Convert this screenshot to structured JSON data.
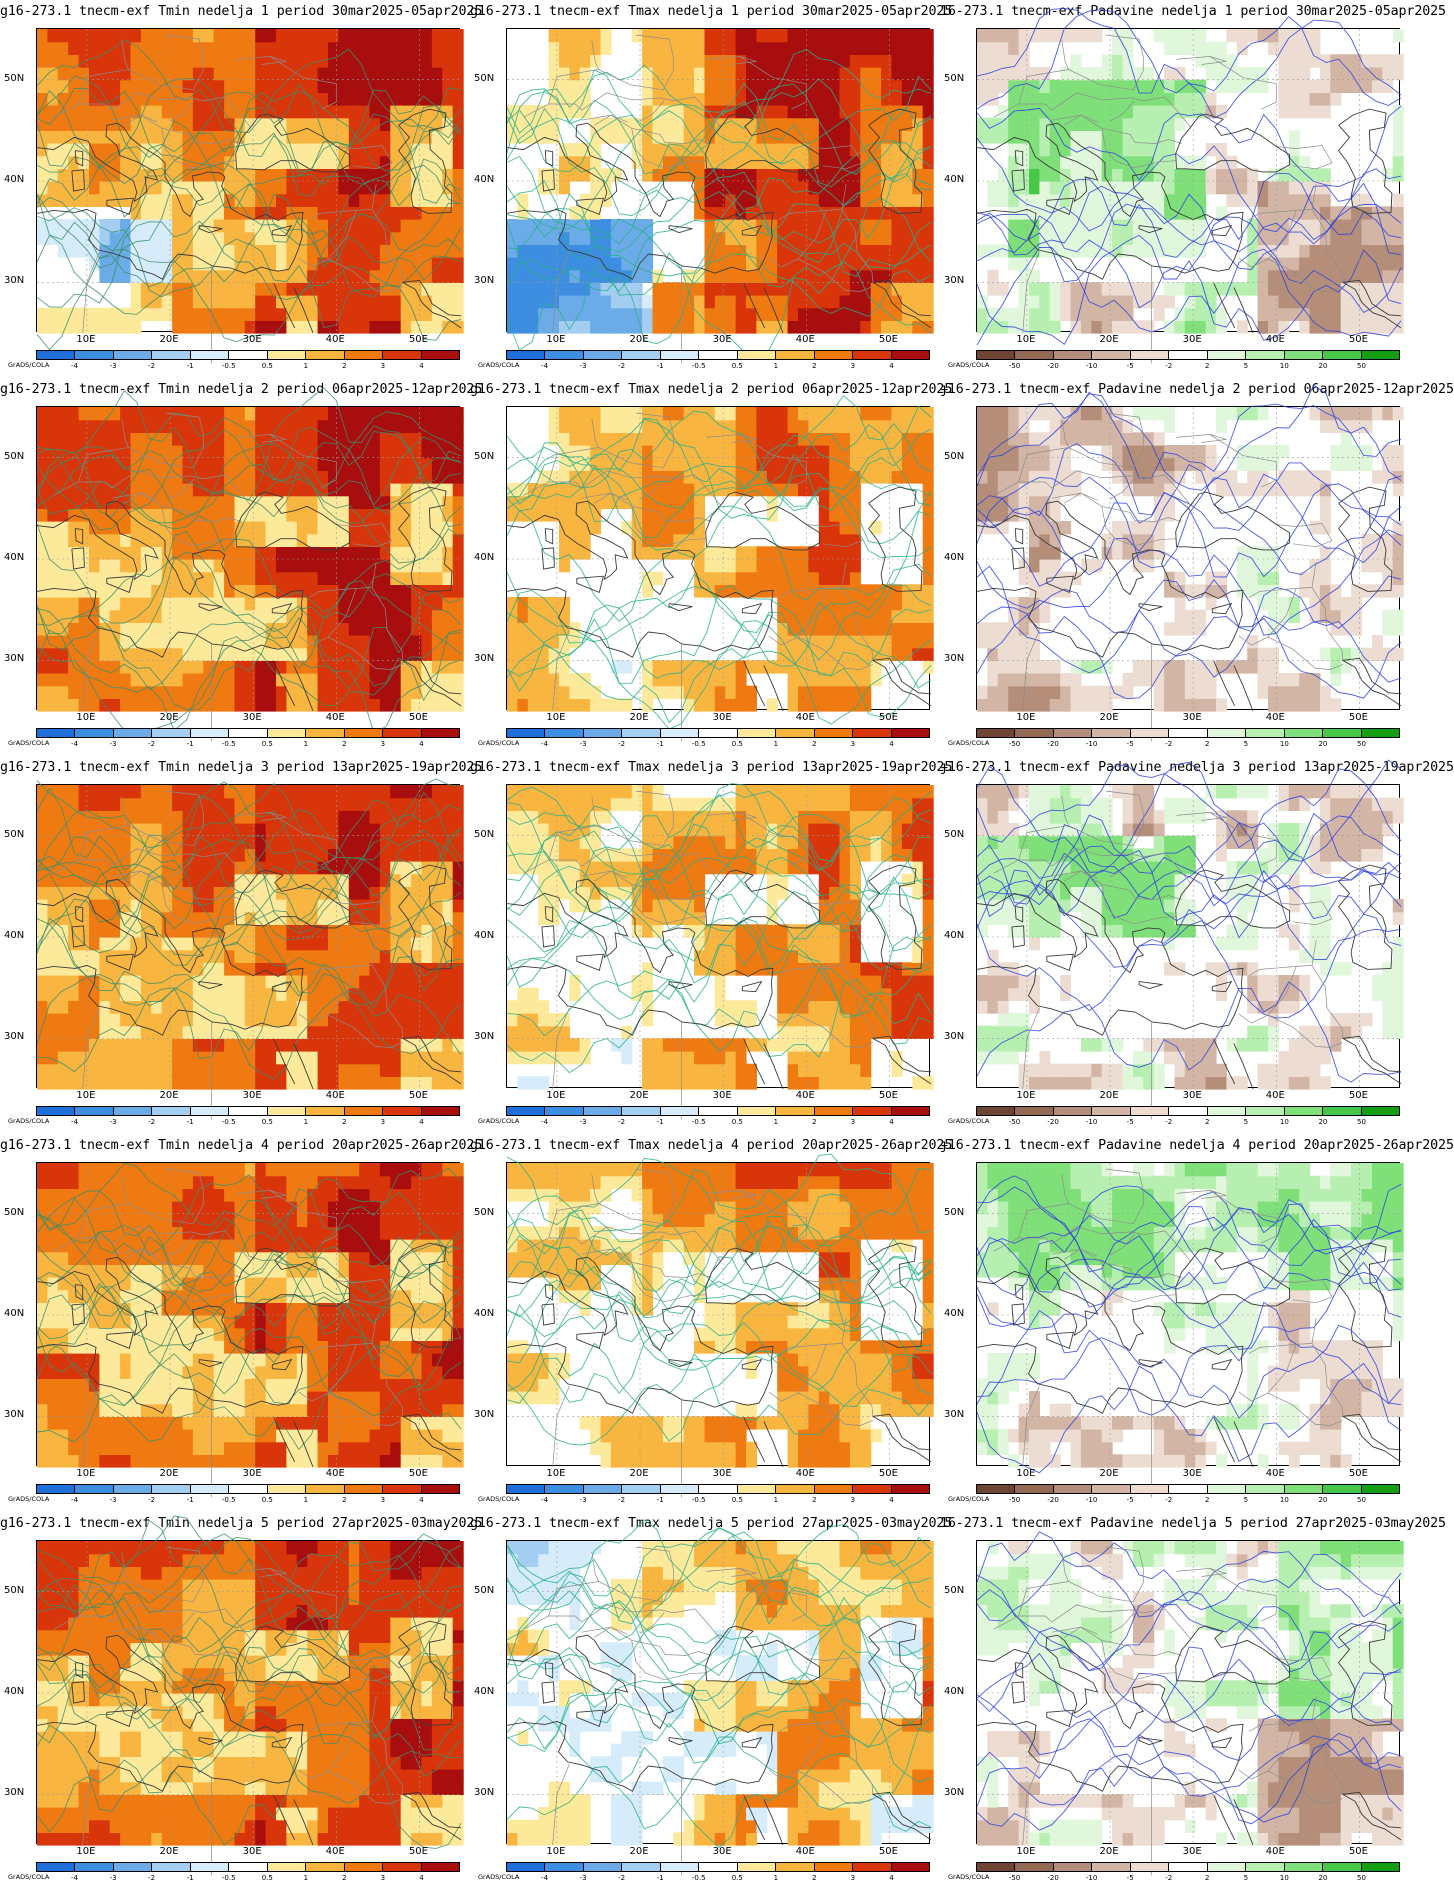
{
  "panels": [
    {
      "title": "g16-273.1 tnecm-exf Tmin nedelja 1 period 30mar2025-05apr2025",
      "kind": "tmin",
      "week": 1
    },
    {
      "title": "g16-273.1 tnecm-exf Tmax nedelja 1 period 30mar2025-05apr2025",
      "kind": "tmax",
      "week": 1
    },
    {
      "title": "16-273.1 tnecm-exf Padavine nedelja 1 period 30mar2025-05apr2025",
      "kind": "prec",
      "week": 1
    },
    {
      "title": "g16-273.1 tnecm-exf Tmin nedelja 2 period 06apr2025-12apr2025",
      "kind": "tmin",
      "week": 2
    },
    {
      "title": "g16-273.1 tnecm-exf Tmax nedelja 2 period 06apr2025-12apr2025",
      "kind": "tmax",
      "week": 2
    },
    {
      "title": "ɟ16-273.1 tnecm-exf Padavine nedelja 2 period 06apr2025-12apr2025",
      "kind": "prec",
      "week": 2
    },
    {
      "title": "g16-273.1 tnecm-exf Tmin nedelja 3 period 13apr2025-19apr2025",
      "kind": "tmin",
      "week": 3
    },
    {
      "title": "g16-273.1 tnecm-exf Tmax nedelja 3 period 13apr2025-19apr2025",
      "kind": "tmax",
      "week": 3
    },
    {
      "title": "ɟ16-273.1 tnecm-exf Padavine nedelja 3 period 13apr2025-19apr2025",
      "kind": "prec",
      "week": 3
    },
    {
      "title": "g16-273.1 tnecm-exf Tmin nedelja 4 period 20apr2025-26apr2025",
      "kind": "tmin",
      "week": 4
    },
    {
      "title": "g16-273.1 tnecm-exf Tmax nedelja 4 period 20apr2025-26apr2025",
      "kind": "tmax",
      "week": 4
    },
    {
      "title": "ɟ16-273.1 tnecm-exf Padavine nedelja 4 period 20apr2025-26apr2025",
      "kind": "prec",
      "week": 4
    },
    {
      "title": "g16-273.1 tnecm-exf Tmin nedelja 5 period 27apr2025-03may2025",
      "kind": "tmin",
      "week": 5
    },
    {
      "title": "g16-273.1 tnecm-exf Tmax nedelja 5 period 27apr2025-03may2025",
      "kind": "tmax",
      "week": 5
    },
    {
      "title": "16-273.1 tnecm-exf Padavine nedelja 5 period 27apr2025-03may2025",
      "kind": "prec",
      "week": 5
    }
  ],
  "lat_labels": [
    "50N",
    "40N",
    "30N"
  ],
  "lon_labels": [
    "10E",
    "20E",
    "30E",
    "40E",
    "50E"
  ],
  "credit": "GrADS/COLA",
  "temp_scale": {
    "labels": [
      "-4",
      "-3",
      "-2",
      "-1",
      "-0.5",
      "0.5",
      "1",
      "2",
      "3",
      "4"
    ],
    "colors": [
      "#1e6fd9",
      "#3d8ee0",
      "#6bace8",
      "#a3cef2",
      "#d6ecfa",
      "#ffffff",
      "#fde99a",
      "#f8b540",
      "#ef7a12",
      "#d9350a",
      "#a80e0e"
    ]
  },
  "prec_scale": {
    "labels": [
      "-50",
      "-20",
      "-10",
      "-5",
      "-2",
      "2",
      "5",
      "10",
      "20",
      "50"
    ],
    "colors": [
      "#6e4530",
      "#946a52",
      "#b48e78",
      "#d3b5a5",
      "#ecdcd2",
      "#ffffff",
      "#e0f7dc",
      "#b6efb0",
      "#7fe07a",
      "#45c845",
      "#149e14"
    ]
  }
}
